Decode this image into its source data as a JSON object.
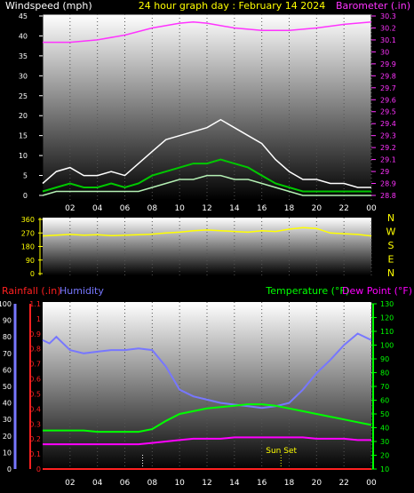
{
  "header": {
    "windspeed_label": "Windspeed (mph)",
    "title": "24 hour graph day : February 14 2024",
    "barometer_label": "Barometer (.in)"
  },
  "colors": {
    "background": "#000000",
    "windspeed_title": "#ffffff",
    "header_title": "#ffff00",
    "barometer": "#ff33ff",
    "gust": "#ffffff",
    "avg_wind": "#00c800",
    "wind_light": "#b4f0b4",
    "direction": "#ffff00",
    "humidity": "#7777ff",
    "rainfall": "#ff2020",
    "temperature": "#00ff00",
    "dew_point": "#ff00ff",
    "sunset": "#ffff00",
    "tick_left": "#ffffff",
    "axis_right": "#00ff00"
  },
  "chart_data": [
    {
      "type": "line",
      "name": "wind-barometer",
      "x_ticks": [
        "02",
        "04",
        "06",
        "08",
        "10",
        "12",
        "14",
        "16",
        "18",
        "20",
        "22",
        "00"
      ],
      "ylim_left": [
        0,
        45
      ],
      "yticks_left": [
        "0",
        "5",
        "10",
        "15",
        "20",
        "25",
        "30",
        "35",
        "40",
        "45"
      ],
      "ylim_right": [
        28.8,
        30.3
      ],
      "yticks_right": [
        "28.8",
        "28.9",
        "29",
        "29.1",
        "29.2",
        "29.3",
        "29.4",
        "29.5",
        "29.6",
        "29.7",
        "29.8",
        "29.9",
        "30",
        "30.1",
        "30.2",
        "30.3"
      ],
      "series": [
        {
          "name": "Barometer (.in)",
          "axis": "right",
          "x": [
            0,
            2,
            4,
            6,
            8,
            10,
            11,
            12,
            14,
            16,
            18,
            20,
            22,
            24
          ],
          "values": [
            30.08,
            30.08,
            30.1,
            30.14,
            30.2,
            30.24,
            30.25,
            30.24,
            30.2,
            30.18,
            30.18,
            30.2,
            30.23,
            30.25
          ]
        },
        {
          "name": "gust",
          "axis": "left",
          "x": [
            0,
            1,
            2,
            3,
            4,
            5,
            6,
            7,
            8,
            9,
            10,
            11,
            12,
            13,
            14,
            15,
            16,
            17,
            18,
            19,
            20,
            21,
            22,
            23,
            24
          ],
          "values": [
            3,
            6,
            7,
            5,
            5,
            6,
            5,
            8,
            11,
            14,
            15,
            16,
            17,
            19,
            17,
            15,
            13,
            9,
            6,
            4,
            4,
            3,
            3,
            2,
            2
          ]
        },
        {
          "name": "wind-average",
          "axis": "left",
          "x": [
            0,
            1,
            2,
            3,
            4,
            5,
            6,
            7,
            8,
            9,
            10,
            11,
            12,
            13,
            14,
            15,
            16,
            17,
            18,
            19,
            20,
            21,
            22,
            23,
            24
          ],
          "values": [
            1,
            2,
            3,
            2,
            2,
            3,
            2,
            3,
            5,
            6,
            7,
            8,
            8,
            9,
            8,
            7,
            5,
            3,
            2,
            1,
            1,
            1,
            1,
            1,
            1
          ]
        },
        {
          "name": "wind-light",
          "axis": "left",
          "x": [
            0,
            1,
            2,
            3,
            4,
            5,
            6,
            7,
            8,
            9,
            10,
            11,
            12,
            13,
            14,
            15,
            16,
            17,
            18,
            19,
            20,
            21,
            22,
            23,
            24
          ],
          "values": [
            0,
            1,
            1,
            1,
            1,
            1,
            1,
            1,
            2,
            3,
            4,
            4,
            5,
            5,
            4,
            4,
            3,
            2,
            1,
            0,
            0,
            0,
            0,
            0,
            0
          ]
        }
      ]
    },
    {
      "type": "line",
      "name": "wind-direction",
      "x_ticks": [
        "02",
        "04",
        "06",
        "08",
        "10",
        "12",
        "14",
        "16",
        "18",
        "20",
        "22",
        "00"
      ],
      "ylim": [
        0,
        360
      ],
      "yticks": [
        "0",
        "90",
        "180",
        "270",
        "360"
      ],
      "compass": [
        "N",
        "W",
        "S",
        "E",
        "N"
      ],
      "series": [
        {
          "name": "direction",
          "x": [
            0,
            1,
            2,
            3,
            4,
            5,
            6,
            7,
            8,
            9,
            10,
            11,
            12,
            13,
            14,
            15,
            16,
            17,
            18,
            19,
            20,
            21,
            22,
            23,
            24
          ],
          "values": [
            250,
            255,
            260,
            255,
            258,
            252,
            255,
            258,
            262,
            270,
            275,
            285,
            290,
            285,
            280,
            275,
            285,
            280,
            295,
            305,
            300,
            270,
            265,
            260,
            250
          ]
        }
      ]
    },
    {
      "type": "line",
      "name": "rain-humidity-temperature",
      "labels": {
        "rainfall": "Rainfall (.in)",
        "humidity": "Humidity",
        "temperature": "Temperature (°F)",
        "dew_point": "Dew Point (°F)",
        "sunset": "Sun Set"
      },
      "x_ticks": [
        "02",
        "04",
        "06",
        "08",
        "10",
        "12",
        "14",
        "16",
        "18",
        "20",
        "22",
        "00"
      ],
      "ylim_humidity": [
        0,
        100
      ],
      "yticks_humidity": [
        "0",
        "10",
        "20",
        "30",
        "40",
        "50",
        "60",
        "70",
        "80",
        "90",
        "100"
      ],
      "ylim_rain": [
        0,
        1.1
      ],
      "yticks_rain": [
        "0",
        "0.1",
        "0.2",
        "0.3",
        "0.4",
        "0.5",
        "0.6",
        "0.7",
        "0.8",
        "0.9",
        "1",
        "1.1"
      ],
      "ylim_temp": [
        10,
        130
      ],
      "yticks_temp": [
        "10",
        "20",
        "30",
        "40",
        "50",
        "60",
        "70",
        "80",
        "90",
        "100",
        "110",
        "120",
        "130"
      ],
      "sunset_hour": 17.4,
      "series": [
        {
          "name": "Humidity",
          "axis": "humidity",
          "x": [
            0,
            0.5,
            1,
            2,
            3,
            4,
            5,
            6,
            7,
            8,
            9,
            10,
            11,
            12,
            13,
            14,
            15,
            16,
            17,
            18,
            19,
            20,
            21,
            22,
            23,
            24
          ],
          "values": [
            78,
            76,
            80,
            72,
            70,
            71,
            72,
            72,
            73,
            72,
            62,
            48,
            44,
            42,
            40,
            39,
            38,
            37,
            38,
            40,
            48,
            58,
            66,
            75,
            82,
            78
          ]
        },
        {
          "name": "Temperature (°F)",
          "axis": "temp",
          "x": [
            0,
            1,
            2,
            3,
            4,
            5,
            6,
            7,
            8,
            9,
            10,
            11,
            12,
            13,
            14,
            15,
            16,
            17,
            18,
            19,
            20,
            21,
            22,
            23,
            24
          ],
          "values": [
            38,
            38,
            38,
            38,
            37,
            37,
            37,
            37,
            39,
            45,
            50,
            52,
            54,
            55,
            56,
            57,
            57,
            56,
            54,
            52,
            50,
            48,
            46,
            44,
            42
          ]
        },
        {
          "name": "Dew Point (°F)",
          "axis": "temp",
          "x": [
            0,
            1,
            2,
            3,
            4,
            5,
            6,
            7,
            8,
            9,
            10,
            11,
            12,
            13,
            14,
            15,
            16,
            17,
            18,
            19,
            20,
            21,
            22,
            23,
            24
          ],
          "values": [
            28,
            28,
            28,
            28,
            28,
            28,
            28,
            28,
            29,
            30,
            31,
            32,
            32,
            32,
            33,
            33,
            33,
            33,
            33,
            33,
            32,
            32,
            32,
            31,
            31
          ]
        },
        {
          "name": "Rainfall (.in)",
          "axis": "rain",
          "x": [
            0,
            24
          ],
          "values": [
            0,
            0
          ]
        }
      ]
    }
  ]
}
